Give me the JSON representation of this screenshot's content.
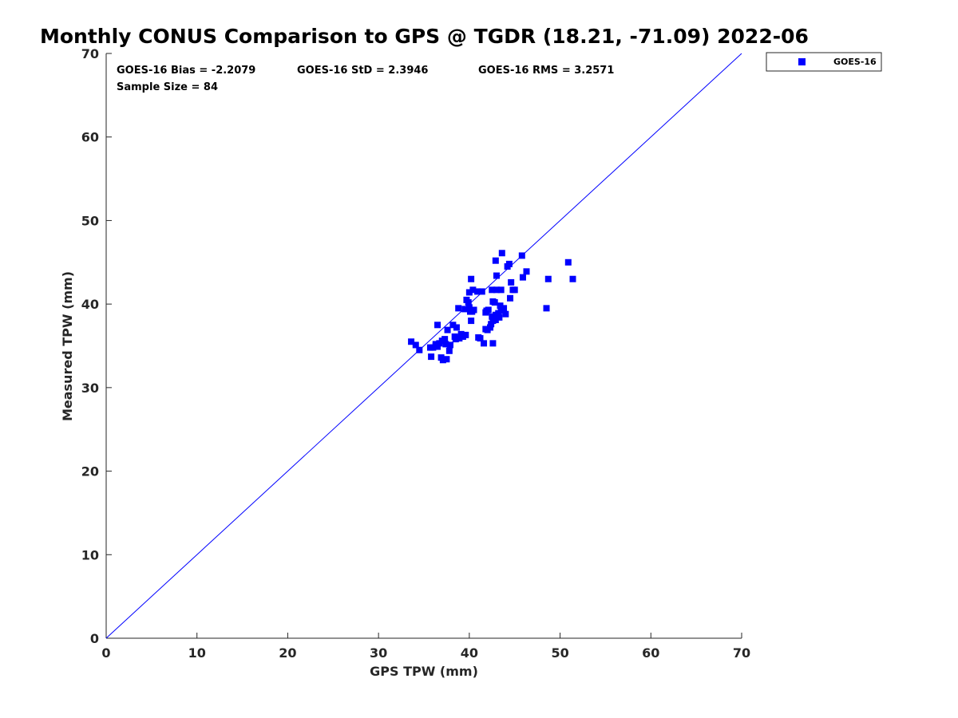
{
  "chart_data": {
    "type": "scatter",
    "title": "Monthly CONUS Comparison to GPS @ TGDR (18.21, -71.09) 2022-06",
    "xlabel": "GPS TPW (mm)",
    "ylabel": "Measured TPW (mm)",
    "xlim": [
      0,
      70
    ],
    "ylim": [
      0,
      70
    ],
    "xticks": [
      "0",
      "10",
      "20",
      "30",
      "40",
      "50",
      "60",
      "70"
    ],
    "yticks": [
      "0",
      "10",
      "20",
      "30",
      "40",
      "50",
      "60",
      "70"
    ],
    "grid": false,
    "legend_position": "outside-top-right",
    "stats": {
      "bias": "GOES-16 Bias = -2.2079",
      "std": "GOES-16 StD = 2.3946",
      "rms": "GOES-16 RMS = 3.2571",
      "sample": "Sample Size = 84"
    },
    "reference_line": {
      "x": [
        0,
        70
      ],
      "y": [
        0,
        70
      ],
      "color": "#0000ff"
    },
    "series": [
      {
        "name": "GOES-16",
        "color": "#0000ff",
        "marker": "square",
        "points": [
          [
            33.6,
            35.5
          ],
          [
            34.1,
            35.1
          ],
          [
            34.5,
            34.5
          ],
          [
            35.7,
            34.8
          ],
          [
            35.8,
            33.7
          ],
          [
            36.0,
            34.8
          ],
          [
            36.3,
            35.0
          ],
          [
            36.5,
            34.9
          ],
          [
            36.7,
            35.3
          ],
          [
            36.5,
            37.5
          ],
          [
            36.9,
            33.6
          ],
          [
            37.1,
            33.3
          ],
          [
            37.3,
            35.8
          ],
          [
            37.5,
            33.4
          ],
          [
            37.4,
            35.2
          ],
          [
            37.6,
            36.9
          ],
          [
            37.8,
            34.4
          ],
          [
            37.9,
            35.1
          ],
          [
            38.2,
            37.5
          ],
          [
            38.4,
            36.1
          ],
          [
            38.6,
            37.2
          ],
          [
            38.8,
            39.5
          ],
          [
            38.9,
            35.9
          ],
          [
            39.1,
            36.4
          ],
          [
            39.3,
            36.1
          ],
          [
            39.5,
            39.4
          ],
          [
            39.6,
            36.3
          ],
          [
            39.7,
            40.5
          ],
          [
            39.9,
            40.2
          ],
          [
            40.0,
            41.4
          ],
          [
            40.1,
            39.1
          ],
          [
            40.2,
            38.0
          ],
          [
            40.2,
            43.0
          ],
          [
            40.4,
            41.7
          ],
          [
            40.5,
            39.3
          ],
          [
            40.9,
            41.5
          ],
          [
            41.0,
            36.0
          ],
          [
            41.2,
            35.9
          ],
          [
            41.4,
            41.5
          ],
          [
            41.6,
            35.3
          ],
          [
            41.8,
            37.0
          ],
          [
            41.9,
            39.2
          ],
          [
            42.1,
            39.3
          ],
          [
            42.3,
            37.2
          ],
          [
            42.4,
            37.6
          ],
          [
            42.5,
            38.5
          ],
          [
            42.6,
            40.3
          ],
          [
            42.6,
            35.3
          ],
          [
            42.5,
            41.7
          ],
          [
            42.8,
            40.2
          ],
          [
            42.9,
            38.1
          ],
          [
            43.0,
            41.7
          ],
          [
            43.0,
            43.4
          ],
          [
            42.9,
            45.2
          ],
          [
            43.2,
            38.9
          ],
          [
            43.3,
            38.4
          ],
          [
            43.4,
            39.8
          ],
          [
            43.5,
            41.7
          ],
          [
            43.6,
            46.1
          ],
          [
            43.8,
            39.5
          ],
          [
            44.0,
            38.8
          ],
          [
            44.2,
            44.5
          ],
          [
            44.4,
            44.8
          ],
          [
            44.5,
            40.7
          ],
          [
            44.6,
            42.6
          ],
          [
            44.8,
            41.7
          ],
          [
            45.0,
            41.7
          ],
          [
            45.8,
            45.8
          ],
          [
            45.9,
            43.2
          ],
          [
            46.3,
            43.9
          ],
          [
            48.5,
            39.5
          ],
          [
            48.7,
            43.0
          ],
          [
            50.9,
            45.0
          ],
          [
            51.4,
            43.0
          ],
          [
            42.6,
            38.0
          ],
          [
            41.8,
            39.0
          ],
          [
            38.5,
            35.8
          ],
          [
            40.0,
            39.6
          ],
          [
            42.0,
            36.9
          ],
          [
            43.5,
            39.2
          ],
          [
            36.3,
            35.2
          ],
          [
            37.0,
            35.6
          ],
          [
            42.9,
            38.7
          ],
          [
            40.3,
            39.1
          ]
        ]
      }
    ]
  }
}
